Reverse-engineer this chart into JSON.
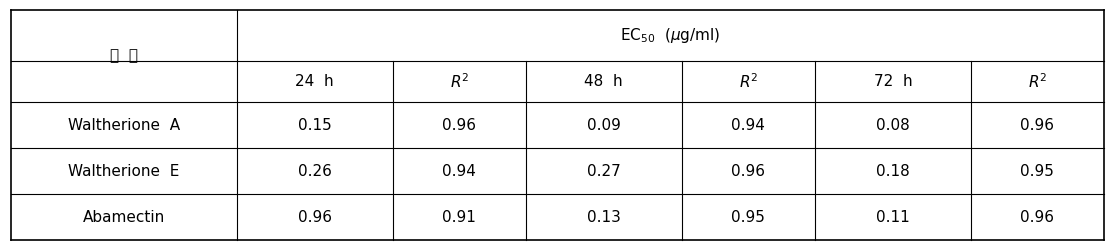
{
  "title": "EC$_{50}$ (μg/ml)",
  "col_header_label": "구  분",
  "subheaders": [
    "24  h",
    "R²",
    "48  h",
    "R²",
    "72  h",
    "R²"
  ],
  "rows": [
    [
      "Waltherione  A",
      "0.15",
      "0.96",
      "0.09",
      "0.94",
      "0.08",
      "0.96"
    ],
    [
      "Waltherione  E",
      "0.26",
      "0.94",
      "0.27",
      "0.96",
      "0.18",
      "0.95"
    ],
    [
      "Abamectin",
      "0.96",
      "0.91",
      "0.13",
      "0.95",
      "0.11",
      "0.96"
    ]
  ],
  "bg_color": "#ffffff",
  "line_color": "#000000",
  "font_size": 11,
  "header_font_size": 11
}
